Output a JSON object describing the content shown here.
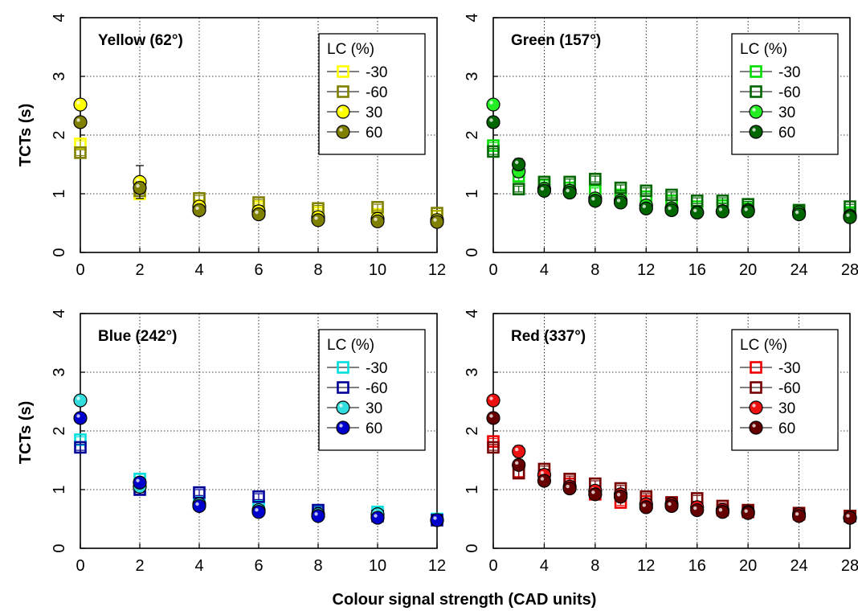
{
  "figure": {
    "ylabel": "TCTs (s)",
    "xlabel": "Colour signal strength (CAD units)"
  },
  "chart_data": [
    {
      "type": "scatter",
      "title": "Yellow (62°)",
      "legend_title": "LC (%)",
      "legend_position": "top-right",
      "grid": true,
      "xlim": [
        0,
        12
      ],
      "ylim": [
        0,
        4
      ],
      "xticks": [
        0,
        2,
        4,
        6,
        8,
        10,
        12
      ],
      "yticks": [
        0,
        1,
        2,
        3,
        4
      ],
      "series": [
        {
          "name": "-30",
          "marker": "square",
          "color": "#ffff00",
          "x": [
            0,
            2,
            4,
            6,
            8,
            10,
            12
          ],
          "y": [
            1.85,
            1.0,
            0.8,
            0.78,
            0.68,
            0.65,
            0.62
          ],
          "err": [
            0.05,
            0.1,
            0.05,
            0.05,
            0.05,
            0.05,
            0.04
          ]
        },
        {
          "name": "-60",
          "marker": "square",
          "color": "#808000",
          "x": [
            0,
            2,
            4,
            6,
            8,
            10,
            12
          ],
          "y": [
            1.7,
            1.05,
            0.92,
            0.85,
            0.75,
            0.77,
            0.67
          ],
          "err": [
            0.05,
            0.08,
            0.05,
            0.05,
            0.05,
            0.05,
            0.04
          ]
        },
        {
          "name": "30",
          "marker": "circle",
          "color": "#ffff00",
          "x": [
            0,
            2,
            4,
            6,
            8,
            10,
            12
          ],
          "y": [
            2.52,
            1.2,
            0.78,
            0.7,
            0.6,
            0.57,
            0.55
          ],
          "err": [
            0.05,
            0.28,
            0.05,
            0.05,
            0.05,
            0.05,
            0.04
          ]
        },
        {
          "name": "60",
          "marker": "circle",
          "color": "#808000",
          "x": [
            0,
            2,
            4,
            6,
            8,
            10,
            12
          ],
          "y": [
            2.22,
            1.1,
            0.72,
            0.65,
            0.55,
            0.53,
            0.52
          ],
          "err": [
            0.05,
            0.1,
            0.05,
            0.05,
            0.05,
            0.05,
            0.04
          ]
        }
      ]
    },
    {
      "type": "scatter",
      "title": "Green (157°)",
      "legend_title": "LC (%)",
      "legend_position": "top-right",
      "grid": true,
      "xlim": [
        0,
        28
      ],
      "ylim": [
        0,
        4
      ],
      "xticks": [
        0,
        4,
        8,
        12,
        16,
        20,
        24,
        28
      ],
      "yticks": [
        0,
        1,
        2,
        3,
        4
      ],
      "series": [
        {
          "name": "-30",
          "marker": "square",
          "color": "#00dd00",
          "x": [
            0,
            2,
            4,
            6,
            8,
            10,
            12,
            14,
            16,
            18,
            20,
            24,
            28
          ],
          "y": [
            1.82,
            1.3,
            1.15,
            1.1,
            1.05,
            0.98,
            0.95,
            0.88,
            0.78,
            0.8,
            0.75,
            0.7,
            0.68
          ],
          "err": [
            0.05,
            0.1,
            0.05,
            0.05,
            0.05,
            0.05,
            0.05,
            0.05,
            0.05,
            0.05,
            0.05,
            0.04,
            0.04
          ]
        },
        {
          "name": "-60",
          "marker": "square",
          "color": "#006600",
          "x": [
            0,
            2,
            4,
            6,
            8,
            10,
            12,
            14,
            16,
            18,
            20,
            24,
            28
          ],
          "y": [
            1.72,
            1.08,
            1.2,
            1.2,
            1.25,
            1.1,
            1.05,
            0.98,
            0.88,
            0.88,
            0.82,
            0.72,
            0.78
          ],
          "err": [
            0.05,
            0.05,
            0.05,
            0.05,
            0.05,
            0.05,
            0.05,
            0.05,
            0.05,
            0.05,
            0.05,
            0.04,
            0.04
          ]
        },
        {
          "name": "30",
          "marker": "circle",
          "color": "#22ee22",
          "x": [
            0,
            2,
            4,
            6,
            8,
            10,
            12,
            14,
            16,
            18,
            20,
            24,
            28
          ],
          "y": [
            2.52,
            1.38,
            1.08,
            1.05,
            0.92,
            0.88,
            0.8,
            0.75,
            0.68,
            0.7,
            0.72,
            0.68,
            0.62
          ],
          "err": [
            0.05,
            0.1,
            0.05,
            0.05,
            0.05,
            0.05,
            0.05,
            0.05,
            0.05,
            0.05,
            0.05,
            0.04,
            0.04
          ]
        },
        {
          "name": "60",
          "marker": "circle",
          "color": "#006600",
          "x": [
            0,
            2,
            4,
            6,
            8,
            10,
            12,
            14,
            16,
            18,
            20,
            24,
            28
          ],
          "y": [
            2.22,
            1.5,
            1.05,
            1.02,
            0.88,
            0.85,
            0.75,
            0.72,
            0.68,
            0.7,
            0.7,
            0.65,
            0.6
          ],
          "err": [
            0.05,
            0.1,
            0.05,
            0.05,
            0.05,
            0.05,
            0.05,
            0.05,
            0.05,
            0.05,
            0.05,
            0.04,
            0.04
          ]
        }
      ]
    },
    {
      "type": "scatter",
      "title": "Blue (242°)",
      "legend_title": "LC (%)",
      "legend_position": "top-right",
      "grid": true,
      "xlim": [
        0,
        12
      ],
      "ylim": [
        0,
        4
      ],
      "xticks": [
        0,
        2,
        4,
        6,
        8,
        10,
        12
      ],
      "yticks": [
        0,
        1,
        2,
        3,
        4
      ],
      "series": [
        {
          "name": "-30",
          "marker": "square",
          "color": "#00dddd",
          "x": [
            0,
            2,
            4,
            6,
            8,
            10,
            12
          ],
          "y": [
            1.85,
            1.18,
            0.78,
            0.72,
            0.62,
            0.62,
            0.5
          ],
          "err": [
            0.05,
            0.1,
            0.05,
            0.05,
            0.05,
            0.05,
            0.04
          ]
        },
        {
          "name": "-60",
          "marker": "square",
          "color": "#000099",
          "x": [
            0,
            2,
            4,
            6,
            8,
            10,
            12
          ],
          "y": [
            1.72,
            1.0,
            0.95,
            0.88,
            0.65,
            0.55,
            0.48
          ],
          "err": [
            0.05,
            0.08,
            0.05,
            0.05,
            0.05,
            0.05,
            0.04
          ]
        },
        {
          "name": "30",
          "marker": "circle",
          "color": "#33dddd",
          "x": [
            0,
            2,
            4,
            6,
            8,
            10,
            12
          ],
          "y": [
            2.52,
            1.05,
            0.75,
            0.65,
            0.58,
            0.58,
            0.48
          ],
          "err": [
            0.05,
            0.1,
            0.05,
            0.05,
            0.05,
            0.05,
            0.04
          ]
        },
        {
          "name": "60",
          "marker": "circle",
          "color": "#0000cc",
          "x": [
            0,
            2,
            4,
            6,
            8,
            10,
            12
          ],
          "y": [
            2.22,
            1.12,
            0.72,
            0.62,
            0.55,
            0.52,
            0.48
          ],
          "err": [
            0.05,
            0.08,
            0.05,
            0.05,
            0.05,
            0.05,
            0.04
          ]
        }
      ]
    },
    {
      "type": "scatter",
      "title": "Red (337°)",
      "legend_title": "LC (%)",
      "legend_position": "top-right",
      "grid": true,
      "xlim": [
        0,
        28
      ],
      "ylim": [
        0,
        4
      ],
      "xticks": [
        0,
        4,
        8,
        12,
        16,
        20,
        24,
        28
      ],
      "yticks": [
        0,
        1,
        2,
        3,
        4
      ],
      "series": [
        {
          "name": "-30",
          "marker": "square",
          "color": "#ee0000",
          "x": [
            0,
            2,
            4,
            6,
            8,
            10,
            12,
            14,
            16,
            18,
            20,
            24,
            28
          ],
          "y": [
            1.82,
            1.3,
            1.25,
            1.1,
            0.92,
            0.78,
            0.8,
            0.78,
            0.7,
            0.65,
            0.62,
            0.58,
            0.55
          ],
          "err": [
            0.05,
            0.1,
            0.05,
            0.05,
            0.05,
            0.05,
            0.05,
            0.05,
            0.05,
            0.05,
            0.05,
            0.04,
            0.04
          ]
        },
        {
          "name": "-60",
          "marker": "square",
          "color": "#770000",
          "x": [
            0,
            2,
            4,
            6,
            8,
            10,
            12,
            14,
            16,
            18,
            20,
            24,
            28
          ],
          "y": [
            1.72,
            1.28,
            1.35,
            1.18,
            1.1,
            1.02,
            0.88,
            0.78,
            0.85,
            0.72,
            0.65,
            0.6,
            0.55
          ],
          "err": [
            0.05,
            0.08,
            0.05,
            0.05,
            0.05,
            0.05,
            0.05,
            0.05,
            0.05,
            0.05,
            0.05,
            0.04,
            0.04
          ]
        },
        {
          "name": "30",
          "marker": "circle",
          "color": "#ee1111",
          "x": [
            0,
            2,
            4,
            6,
            8,
            10,
            12,
            14,
            16,
            18,
            20,
            24,
            28
          ],
          "y": [
            2.52,
            1.65,
            1.25,
            1.05,
            0.98,
            0.92,
            0.75,
            0.75,
            0.7,
            0.65,
            0.62,
            0.58,
            0.52
          ],
          "err": [
            0.05,
            0.1,
            0.05,
            0.05,
            0.05,
            0.05,
            0.05,
            0.05,
            0.05,
            0.05,
            0.05,
            0.04,
            0.04
          ]
        },
        {
          "name": "60",
          "marker": "circle",
          "color": "#660000",
          "x": [
            0,
            2,
            4,
            6,
            8,
            10,
            12,
            14,
            16,
            18,
            20,
            24,
            28
          ],
          "y": [
            2.22,
            1.42,
            1.15,
            1.02,
            0.92,
            0.88,
            0.7,
            0.72,
            0.65,
            0.62,
            0.6,
            0.55,
            0.52
          ],
          "err": [
            0.05,
            0.08,
            0.05,
            0.05,
            0.05,
            0.05,
            0.05,
            0.05,
            0.05,
            0.05,
            0.05,
            0.04,
            0.04
          ]
        }
      ]
    }
  ]
}
